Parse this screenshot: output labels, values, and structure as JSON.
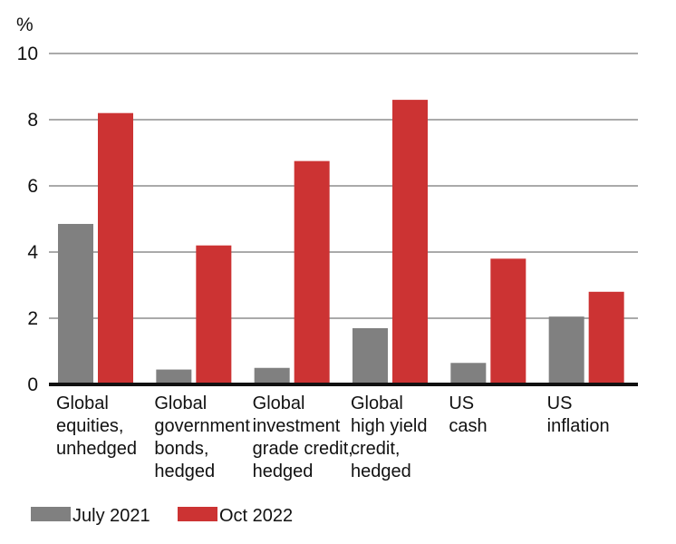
{
  "chart_data": {
    "type": "bar",
    "ylabel": "%",
    "ylim": [
      0,
      10
    ],
    "yticks": [
      "0",
      "2",
      "4",
      "6",
      "8",
      "10"
    ],
    "grid": true,
    "legend_position": "bottom-left",
    "categories": [
      [
        "Global",
        "equities,",
        "unhedged"
      ],
      [
        "Global",
        "government",
        "bonds,",
        "hedged"
      ],
      [
        "Global",
        "investment",
        "grade credit,",
        "hedged"
      ],
      [
        "Global",
        "high yield",
        "credit,",
        "hedged"
      ],
      [
        "US",
        "cash"
      ],
      [
        "US",
        "inflation"
      ]
    ],
    "series": [
      {
        "name": "July 2021",
        "color": "#808080",
        "values": [
          4.85,
          0.45,
          0.5,
          1.7,
          0.65,
          2.05
        ]
      },
      {
        "name": "Oct 2022",
        "color": "#cc3333",
        "values": [
          8.2,
          4.2,
          6.75,
          8.6,
          3.8,
          2.8
        ]
      }
    ]
  }
}
